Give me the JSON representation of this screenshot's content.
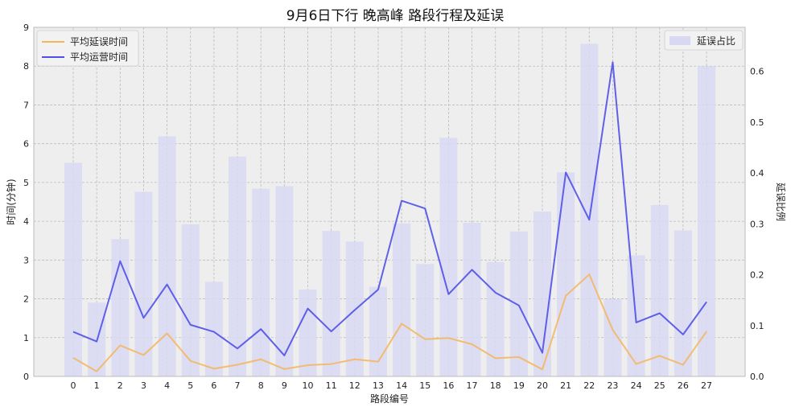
{
  "chart_data": {
    "type": "bar",
    "title": "9月6日下行 晚高峰 路段行程及延误",
    "xlabel": "路段编号",
    "ylabel_left": "时间(分钟)",
    "ylabel_right": "延误比例",
    "categories": [
      "0",
      "1",
      "2",
      "3",
      "4",
      "5",
      "6",
      "7",
      "8",
      "9",
      "10",
      "11",
      "12",
      "13",
      "14",
      "15",
      "16",
      "17",
      "18",
      "19",
      "20",
      "21",
      "22",
      "23",
      "24",
      "25",
      "26",
      "27"
    ],
    "ylim_left": [
      0,
      9
    ],
    "yticks_left": [
      0,
      1,
      2,
      3,
      4,
      5,
      6,
      7,
      8,
      9
    ],
    "ylim_right": [
      0,
      0.6863
    ],
    "yticks_right": [
      0.0,
      0.1,
      0.2,
      0.3,
      0.4,
      0.5,
      0.6
    ],
    "yticklabels_right": [
      "0.0",
      "0.1",
      "0.2",
      "0.3",
      "0.4",
      "0.5",
      "0.6"
    ],
    "grid": true,
    "series": [
      {
        "name": "平均延误时间",
        "kind": "line",
        "axis": "left",
        "color": "#F5B55C",
        "values": [
          0.48,
          0.13,
          0.8,
          0.55,
          1.11,
          0.4,
          0.2,
          0.3,
          0.44,
          0.19,
          0.29,
          0.32,
          0.44,
          0.38,
          1.36,
          0.96,
          0.99,
          0.83,
          0.47,
          0.5,
          0.18,
          2.08,
          2.63,
          1.2,
          0.32,
          0.53,
          0.3,
          1.16
        ]
      },
      {
        "name": "平均运营时间",
        "kind": "line",
        "axis": "left",
        "color": "#5050E8",
        "values": [
          1.15,
          0.9,
          2.97,
          1.51,
          2.37,
          1.33,
          1.15,
          0.72,
          1.22,
          0.54,
          1.75,
          1.16,
          1.71,
          2.24,
          4.53,
          4.33,
          2.12,
          2.75,
          2.16,
          1.83,
          0.61,
          5.26,
          4.04,
          8.1,
          1.39,
          1.63,
          1.08,
          1.92
        ]
      },
      {
        "name": "延误占比",
        "kind": "bar",
        "axis": "right",
        "color": "#D8D8F2",
        "values": [
          0.42,
          0.145,
          0.27,
          0.363,
          0.472,
          0.299,
          0.186,
          0.432,
          0.369,
          0.374,
          0.171,
          0.286,
          0.265,
          0.176,
          0.301,
          0.221,
          0.469,
          0.302,
          0.225,
          0.285,
          0.324,
          0.401,
          0.654,
          0.152,
          0.238,
          0.337,
          0.287,
          0.61
        ]
      }
    ],
    "legend_left": [
      "平均延误时间",
      "平均运营时间"
    ],
    "legend_right": [
      "延误占比"
    ]
  }
}
